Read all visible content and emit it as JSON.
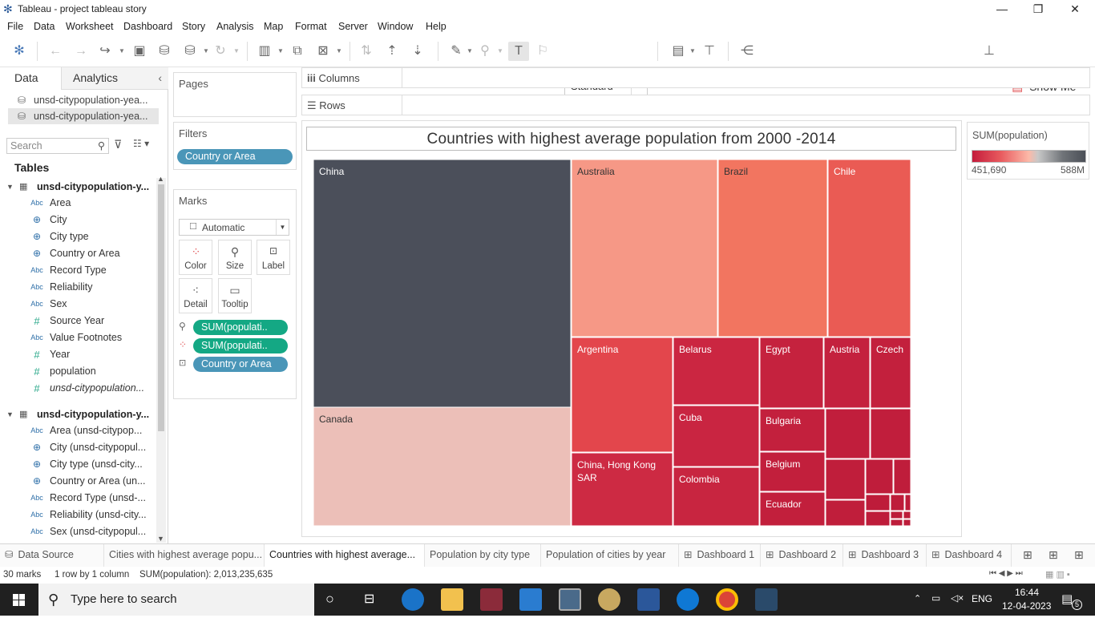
{
  "window": {
    "title": "Tableau - project tableau story"
  },
  "menu": [
    "File",
    "Data",
    "Worksheet",
    "Dashboard",
    "Story",
    "Analysis",
    "Map",
    "Format",
    "Server",
    "Window",
    "Help"
  ],
  "toolbar": {
    "view_mode": "Standard",
    "show_me": "Show Me"
  },
  "left_panel": {
    "tabs": {
      "data": "Data",
      "analytics": "Analytics"
    },
    "datasources": [
      "unsd-citypopulation-yea...",
      "unsd-citypopulation-yea..."
    ],
    "search_placeholder": "Search",
    "tables_label": "Tables",
    "table1": {
      "name": "unsd-citypopulation-y...",
      "fields": [
        {
          "type": "Abc",
          "name": "Area"
        },
        {
          "type": "geo",
          "name": "City"
        },
        {
          "type": "geo",
          "name": "City type"
        },
        {
          "type": "geo",
          "name": "Country or Area"
        },
        {
          "type": "Abc",
          "name": "Record Type"
        },
        {
          "type": "Abc",
          "name": "Reliability"
        },
        {
          "type": "Abc",
          "name": "Sex"
        },
        {
          "type": "#",
          "name": "Source Year"
        },
        {
          "type": "Abc",
          "name": "Value Footnotes"
        },
        {
          "type": "#",
          "name": "Year"
        },
        {
          "type": "#",
          "name": "population"
        },
        {
          "type": "#",
          "name": "unsd-citypopulation..."
        }
      ]
    },
    "table2": {
      "name": "unsd-citypopulation-y...",
      "fields": [
        {
          "type": "Abc",
          "name": "Area (unsd-citypop..."
        },
        {
          "type": "geo",
          "name": "City (unsd-citypopul..."
        },
        {
          "type": "geo",
          "name": "City type (unsd-city..."
        },
        {
          "type": "geo",
          "name": "Country or Area (un..."
        },
        {
          "type": "Abc",
          "name": "Record Type (unsd-..."
        },
        {
          "type": "Abc",
          "name": "Reliability (unsd-city..."
        },
        {
          "type": "Abc",
          "name": "Sex (unsd-citypopul..."
        }
      ]
    }
  },
  "cards": {
    "pages": "Pages",
    "filters": "Filters",
    "filter_pill": "Country or Area",
    "marks": "Marks",
    "mark_type": "Automatic",
    "mark_buttons": {
      "color": "Color",
      "size": "Size",
      "label": "Label",
      "detail": "Detail",
      "tooltip": "Tooltip"
    },
    "mark_pills": {
      "size": "SUM(populati..",
      "color": "SUM(populati..",
      "label": "Country or Area"
    }
  },
  "shelves": {
    "columns": "Columns",
    "rows": "Rows"
  },
  "chart_data": {
    "type": "treemap",
    "title": "Countries with  highest average population from 2000 -2014",
    "measure": "SUM(population)",
    "labeled_countries": [
      "China",
      "Canada",
      "Australia",
      "Brazil",
      "Chile",
      "Argentina",
      "China, Hong Kong SAR",
      "Belarus",
      "Cuba",
      "Colombia",
      "Egypt",
      "Austria",
      "Czech",
      "Bulgaria",
      "Belgium",
      "Ecuador"
    ],
    "color_legend": {
      "title": "SUM(population)",
      "min": "451,690",
      "max": "588M"
    },
    "marks_count": 30
  },
  "sheet_tabs": [
    {
      "icon": "datasource",
      "label": "Data Source"
    },
    {
      "icon": "sheet",
      "label": "Cities with highest average popu..."
    },
    {
      "icon": "sheet",
      "label": "Countries with highest average..."
    },
    {
      "icon": "sheet",
      "label": "Population by city type"
    },
    {
      "icon": "sheet",
      "label": "Population  of cities by year"
    },
    {
      "icon": "dashboard",
      "label": "Dashboard 1"
    },
    {
      "icon": "dashboard",
      "label": "Dashboard 2"
    },
    {
      "icon": "dashboard",
      "label": "Dashboard 3"
    },
    {
      "icon": "dashboard",
      "label": "Dashboard 4"
    }
  ],
  "status": {
    "marks": "30 marks",
    "rows": "1 row by 1 column",
    "sum": "SUM(population): 2,013,235,635"
  },
  "taskbar": {
    "search_placeholder": "Type here to search",
    "lang": "ENG",
    "time": "16:44",
    "date": "12-04-2023",
    "notifications": "5"
  }
}
